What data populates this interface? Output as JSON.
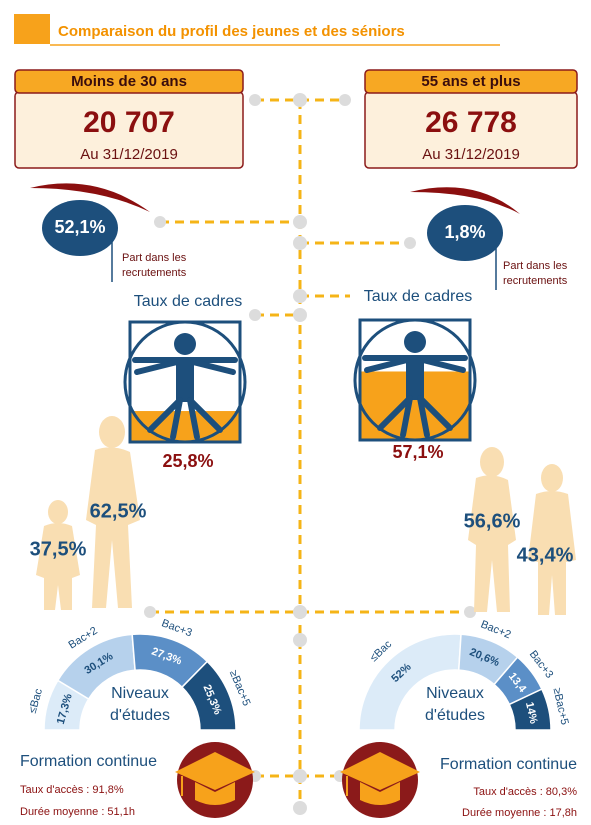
{
  "header": {
    "title": "Comparaison du profil des jeunes et des séniors"
  },
  "groups": [
    {
      "label": "Moins de 30 ans",
      "count": "20 707",
      "date": "Au 31/12/2019",
      "recruitment": {
        "value": "52,1%",
        "caption": [
          "Part dans les",
          "recrutements"
        ]
      },
      "cadres": {
        "title": "Taux de cadres",
        "value": "25,8%"
      },
      "gender": {
        "women": "62,5%",
        "men": "37,5%"
      },
      "education": {
        "title": [
          "Niveaux",
          "d'études"
        ],
        "segments": [
          {
            "label": "≤Bac",
            "value": "17,3%"
          },
          {
            "label": "Bac+2",
            "value": "30,1%"
          },
          {
            "label": "Bac+3",
            "value": "27,3%"
          },
          {
            "label": "≥Bac+5",
            "value": "25,3%"
          }
        ]
      },
      "training": {
        "title": "Formation continue",
        "access": "Taux d'accès : 91,8%",
        "duration": "Durée moyenne : 51,1h"
      }
    },
    {
      "label": "55 ans et plus",
      "count": "26 778",
      "date": "Au 31/12/2019",
      "recruitment": {
        "value": "1,8%",
        "caption": [
          "Part dans les",
          "recrutements"
        ]
      },
      "cadres": {
        "title": "Taux de cadres",
        "value": "57,1%"
      },
      "gender": {
        "women": "56,6%",
        "men": "43,4%"
      },
      "education": {
        "title": [
          "Niveaux",
          "d'études"
        ],
        "segments": [
          {
            "label": "≤Bac",
            "value": "52%"
          },
          {
            "label": "Bac+2",
            "value": "20,6%"
          },
          {
            "label": "Bac+3",
            "value": "13,4"
          },
          {
            "label": "≥Bac+5",
            "value": "14%"
          }
        ]
      },
      "training": {
        "title": "Formation continue",
        "access": "Taux d'accès : 80,3%",
        "duration": "Durée moyenne : 17,8h"
      }
    }
  ]
}
